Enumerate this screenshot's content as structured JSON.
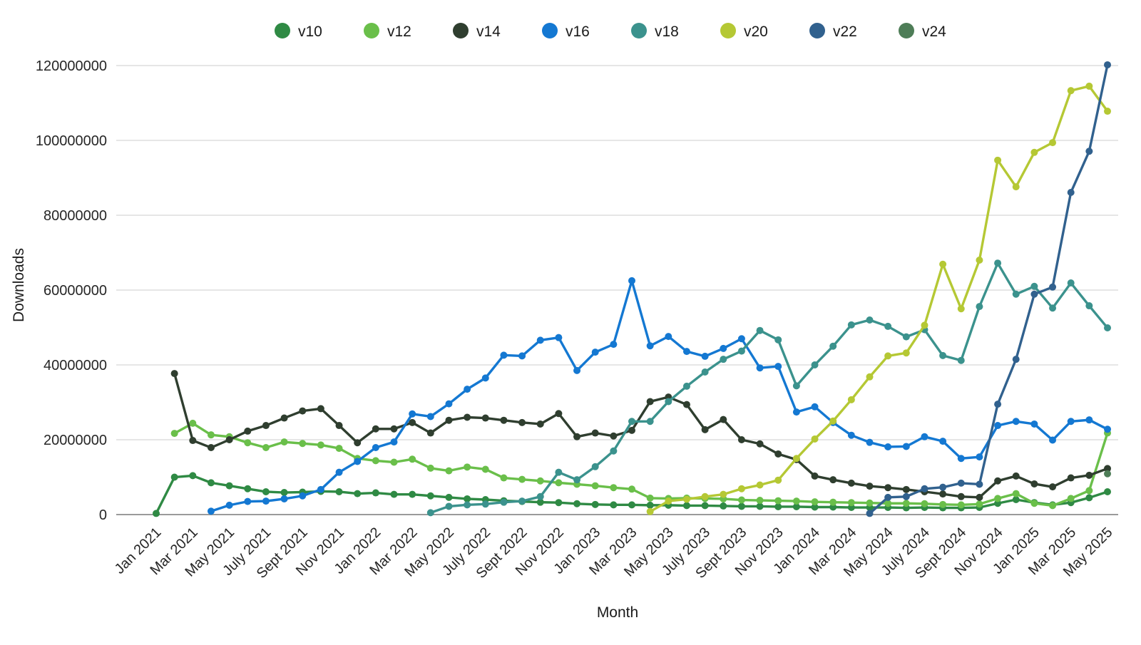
{
  "chart_data": {
    "type": "line",
    "title": "",
    "xlabel": "Month",
    "ylabel": "Downloads",
    "unit": "millions of downloads",
    "grid": "horizontal",
    "legend_position": "top-center",
    "ylim": [
      0,
      120000000
    ],
    "y_tick_labels": [
      "0",
      "20000000",
      "40000000",
      "60000000",
      "80000000",
      "100000000",
      "120000000"
    ],
    "x_tick_labels": [
      "Jan 2021",
      "Mar 2021",
      "May 2021",
      "July 2021",
      "Sept 2021",
      "Nov 2021",
      "Jan 2022",
      "Mar 2022",
      "May 2022",
      "July 2022",
      "Sept 2022",
      "Nov 2022",
      "Jan 2023",
      "Mar 2023",
      "May 2023",
      "July 2023",
      "Sept 2023",
      "Nov 2023",
      "Jan 2024",
      "Mar 2024",
      "May 2024",
      "July 2024",
      "Sept 2024",
      "Nov 2024",
      "Jan 2025",
      "Mar 2025",
      "May 2025"
    ],
    "x_range_note": "53 monthly points, Jan 2021 through May 2025; labels shown every 2 months",
    "series": [
      {
        "name": "v10",
        "color": "#2f8a44",
        "values_millions": [
          0.3,
          10,
          10.4,
          8.5,
          7.7,
          6.9,
          6.1,
          5.9,
          6,
          6.2,
          6.1,
          5.6,
          5.8,
          5.4,
          5.4,
          5,
          4.6,
          4.2,
          4,
          3.7,
          3.5,
          3.3,
          3.2,
          2.9,
          2.7,
          2.6,
          2.6,
          2.5,
          2.5,
          2.4,
          2.4,
          2.3,
          2.2,
          2.2,
          2.1,
          2.1,
          2,
          2,
          1.9,
          1.9,
          1.9,
          1.8,
          1.9,
          1.8,
          1.8,
          1.9,
          3,
          4,
          3.2,
          2.6,
          3.2,
          4.5,
          6.1
        ]
      },
      {
        "name": "v12",
        "color": "#6abf4a",
        "values_millions": [
          null,
          21.7,
          24.4,
          21.3,
          20.8,
          19.2,
          17.9,
          19.4,
          19,
          18.6,
          17.7,
          15,
          14.4,
          14,
          14.8,
          12.4,
          11.7,
          12.7,
          12.1,
          9.8,
          9.4,
          9,
          8.5,
          8.1,
          7.7,
          7.2,
          6.8,
          4.4,
          4.3,
          4.4,
          4.3,
          4.2,
          3.9,
          3.8,
          3.7,
          3.6,
          3.4,
          3.3,
          3.2,
          3.1,
          3,
          3,
          2.9,
          2.7,
          2.6,
          2.8,
          4.3,
          5.6,
          3,
          2.4,
          4.3,
          6.4,
          21.8
        ]
      },
      {
        "name": "v14",
        "color": "#2f3e2f",
        "values_millions": [
          null,
          37.7,
          19.8,
          17.9,
          20,
          22.3,
          23.8,
          25.8,
          27.7,
          28.3,
          23.8,
          19.2,
          22.9,
          22.9,
          24.6,
          21.8,
          25.2,
          26,
          25.8,
          25.2,
          24.6,
          24.2,
          27,
          20.8,
          21.8,
          21,
          22.5,
          30.2,
          31.4,
          29.4,
          22.7,
          25.4,
          20,
          18.9,
          16.2,
          14.7,
          10.3,
          9.3,
          8.4,
          7.6,
          7.2,
          6.7,
          6.1,
          5.5,
          4.8,
          4.6,
          9,
          10.3,
          8.2,
          7.4,
          9.8,
          10.5,
          12.3
        ]
      },
      {
        "name": "v16",
        "color": "#1478d2",
        "values_millions": [
          null,
          null,
          null,
          0.9,
          2.5,
          3.5,
          3.6,
          4.2,
          5,
          6.7,
          11.3,
          14.2,
          17.9,
          19.4,
          26.9,
          26.2,
          29.6,
          33.5,
          36.5,
          42.6,
          42.4,
          46.6,
          47.3,
          38.5,
          43.4,
          45.5,
          62.5,
          45.1,
          47.6,
          43.6,
          42.3,
          44.4,
          47,
          39.2,
          39.6,
          27.4,
          28.8,
          24.6,
          21.2,
          19.3,
          18.1,
          18.2,
          20.8,
          19.6,
          15,
          15.4,
          23.8,
          24.9,
          24.2,
          19.9,
          24.9,
          25.3,
          22.8
        ]
      },
      {
        "name": "v18",
        "color": "#3b928d",
        "values_millions": [
          null,
          null,
          null,
          null,
          null,
          null,
          null,
          null,
          null,
          null,
          null,
          null,
          null,
          null,
          null,
          0.5,
          2.2,
          2.6,
          2.8,
          3.3,
          3.6,
          4.8,
          11.3,
          9.3,
          12.8,
          17,
          24.9,
          24.9,
          30.2,
          34.3,
          38.1,
          41.5,
          43.7,
          49.2,
          46.7,
          34.4,
          40,
          45,
          50.7,
          52,
          50.3,
          47.5,
          49.4,
          42.5,
          41.2,
          55.6,
          67.2,
          58.9,
          61,
          55.2,
          61.9,
          55.8,
          49.9
        ]
      },
      {
        "name": "v20",
        "color": "#b5c834",
        "values_millions": [
          null,
          null,
          null,
          null,
          null,
          null,
          null,
          null,
          null,
          null,
          null,
          null,
          null,
          null,
          null,
          null,
          null,
          null,
          null,
          null,
          null,
          null,
          null,
          null,
          null,
          null,
          null,
          0.8,
          3.6,
          4.1,
          4.8,
          5.4,
          6.9,
          7.9,
          9.2,
          15,
          20.2,
          25,
          30.7,
          36.8,
          42.4,
          43.2,
          50.6,
          66.9,
          55,
          68,
          94.7,
          87.6,
          96.8,
          99.4,
          113.3,
          114.5,
          107.8
        ]
      },
      {
        "name": "v22",
        "color": "#31618e",
        "values_millions": [
          null,
          null,
          null,
          null,
          null,
          null,
          null,
          null,
          null,
          null,
          null,
          null,
          null,
          null,
          null,
          null,
          null,
          null,
          null,
          null,
          null,
          null,
          null,
          null,
          null,
          null,
          null,
          null,
          null,
          null,
          null,
          null,
          null,
          null,
          null,
          null,
          null,
          null,
          null,
          0.3,
          4.6,
          4.8,
          6.9,
          7.3,
          8.4,
          8.1,
          29.5,
          41.5,
          58.9,
          60.8,
          86.1,
          97.1,
          120.2
        ]
      },
      {
        "name": "v24",
        "color": "#4e7d57",
        "values_millions": [
          null,
          null,
          null,
          null,
          null,
          null,
          null,
          null,
          null,
          null,
          null,
          null,
          null,
          null,
          null,
          null,
          null,
          null,
          null,
          null,
          null,
          null,
          null,
          null,
          null,
          null,
          null,
          null,
          null,
          null,
          null,
          null,
          null,
          null,
          null,
          null,
          null,
          null,
          null,
          null,
          null,
          null,
          null,
          null,
          null,
          null,
          null,
          null,
          null,
          null,
          null,
          null,
          10.9
        ]
      }
    ]
  },
  "style": {
    "background": "#ffffff",
    "gridline_color": "#d8d8d8",
    "axis_line_color": "#9a9a9a"
  }
}
